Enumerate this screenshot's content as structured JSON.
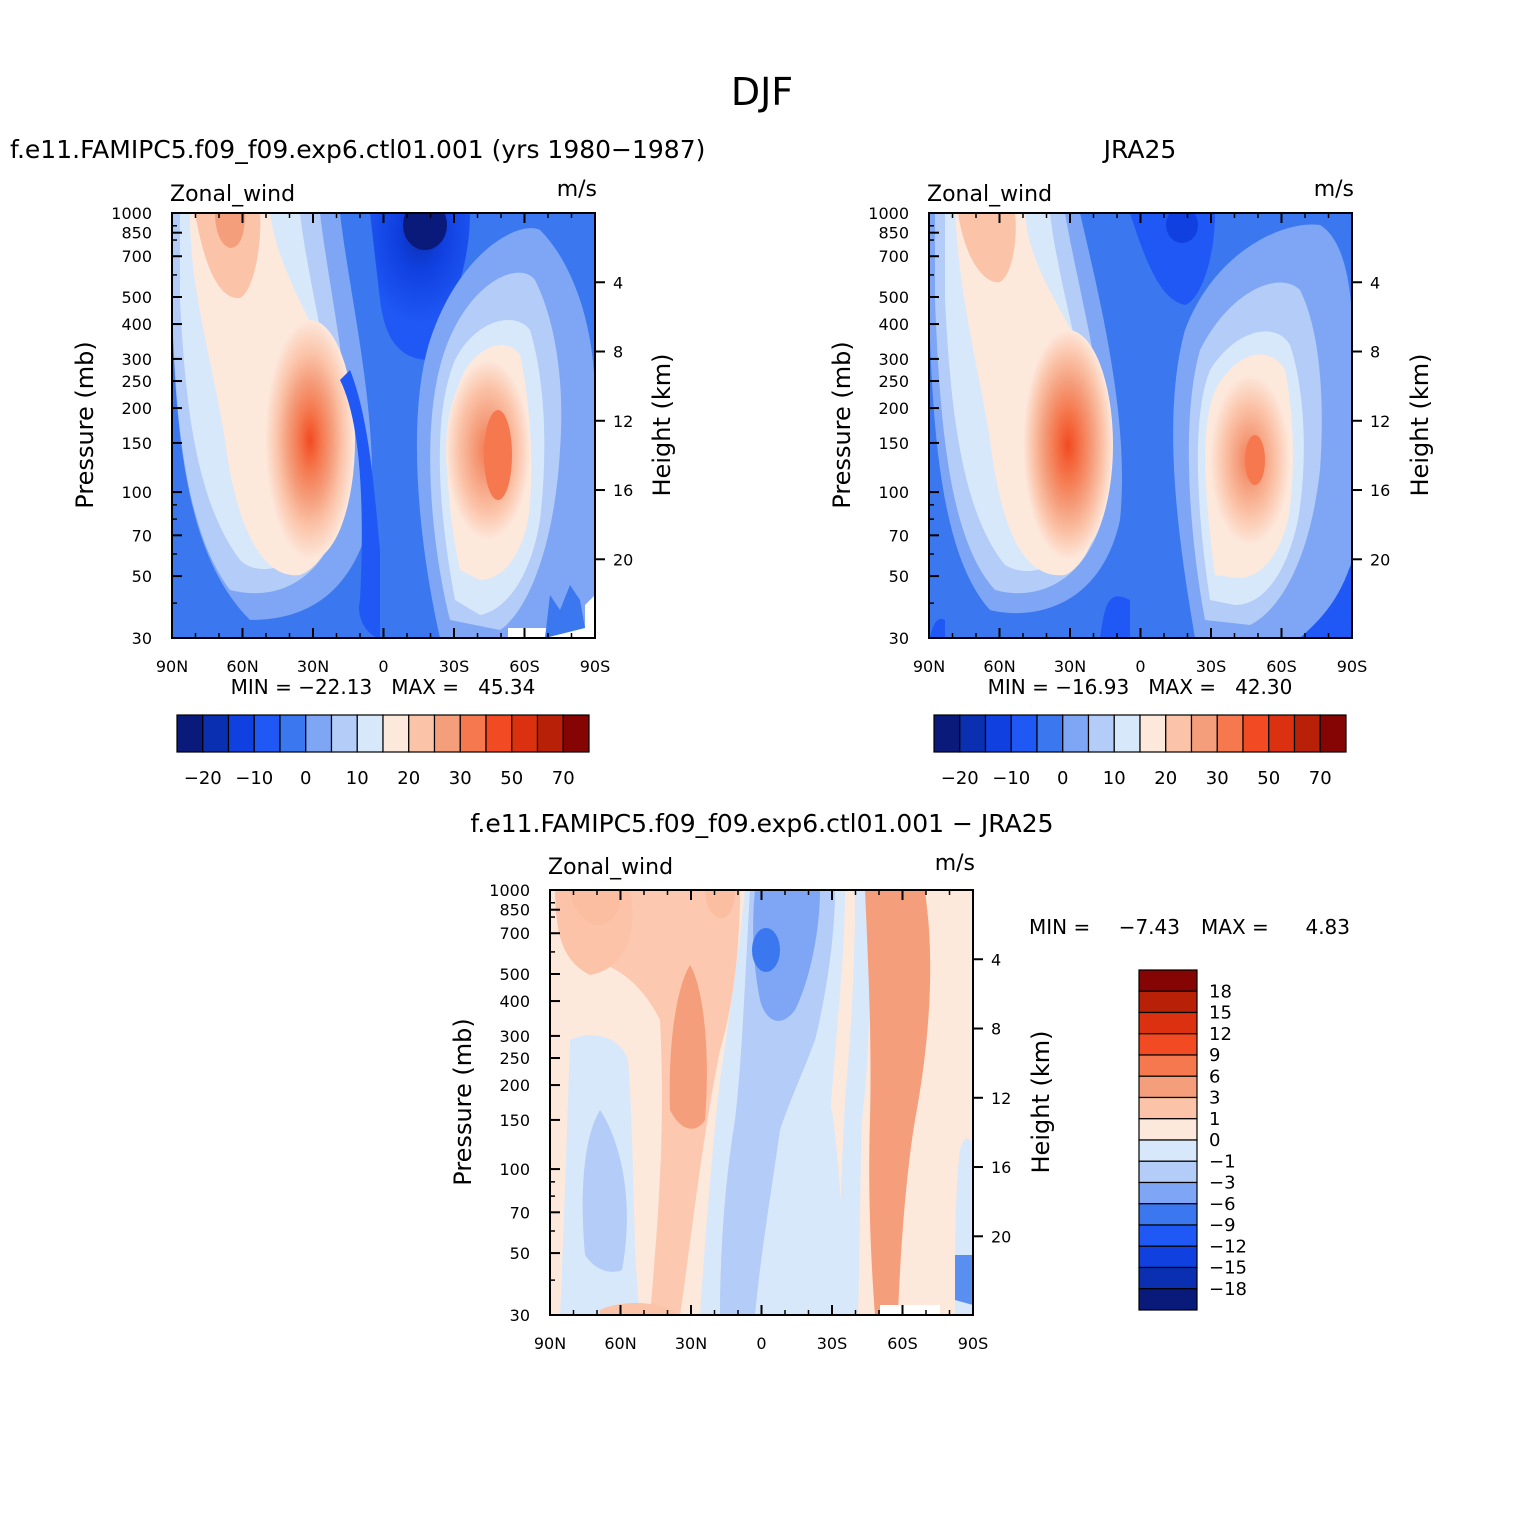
{
  "main_title": "DJF",
  "palette": [
    "#0a1a7a",
    "#0a2fb0",
    "#1040e0",
    "#1f58f5",
    "#3b78f0",
    "#7ea6f5",
    "#b3ccf8",
    "#d8e8fb",
    "#fde8dc",
    "#fbc3a8",
    "#f59e7c",
    "#f5784e",
    "#f24a22",
    "#dc3110",
    "#b82008",
    "#850505"
  ],
  "charts": [
    {
      "header": "f.e11.FAMIPC5.f09_f09.exp6.ctl01.001 (yrs 1980−1987)",
      "left_label": "Zonal_wind",
      "unit": "m/s",
      "ylabel": "Pressure (mb)",
      "y2label": "Height (km)",
      "yticks": [
        "30",
        "50",
        "70",
        "100",
        "150",
        "200",
        "250",
        "300",
        "400",
        "500",
        "700",
        "850",
        "1000"
      ],
      "y2ticks": [
        "20",
        "16",
        "12",
        "8",
        "4"
      ],
      "xticks": [
        "90N",
        "60N",
        "30N",
        "0",
        "30S",
        "60S",
        "90S"
      ],
      "minmax": "MIN = −22.13   MAX =   45.34",
      "colorbar_labels": [
        "−20",
        "−10",
        "0",
        "10",
        "20",
        "30",
        "50",
        "70"
      ]
    },
    {
      "header": "JRA25",
      "left_label": "Zonal_wind",
      "unit": "m/s",
      "ylabel": "Pressure (mb)",
      "y2label": "Height (km)",
      "yticks": [
        "30",
        "50",
        "70",
        "100",
        "150",
        "200",
        "250",
        "300",
        "400",
        "500",
        "700",
        "850",
        "1000"
      ],
      "y2ticks": [
        "20",
        "16",
        "12",
        "8",
        "4"
      ],
      "xticks": [
        "90N",
        "60N",
        "30N",
        "0",
        "30S",
        "60S",
        "90S"
      ],
      "minmax": "MIN = −16.93   MAX =   42.30",
      "colorbar_labels": [
        "−20",
        "−10",
        "0",
        "10",
        "20",
        "30",
        "50",
        "70"
      ]
    },
    {
      "header": "f.e11.FAMIPC5.f09_f09.exp6.ctl01.001 − JRA25",
      "left_label": "Zonal_wind",
      "unit": "m/s",
      "ylabel": "Pressure (mb)",
      "y2label": "Height (km)",
      "yticks": [
        "30",
        "50",
        "70",
        "100",
        "150",
        "200",
        "250",
        "300",
        "400",
        "500",
        "700",
        "850",
        "1000"
      ],
      "y2ticks": [
        "20",
        "16",
        "12",
        "8",
        "4"
      ],
      "xticks": [
        "90N",
        "60N",
        "30N",
        "0",
        "30S",
        "60S",
        "90S"
      ],
      "minmax_min_label": "MIN =",
      "minmax_min": "−7.43",
      "minmax_max_label": "MAX =",
      "minmax_max": "4.83",
      "colorbar_labels": [
        "18",
        "15",
        "12",
        "9",
        "6",
        "3",
        "1",
        "0",
        "−1",
        "−3",
        "−6",
        "−9",
        "−12",
        "−15",
        "−18"
      ]
    }
  ],
  "chart_data": [
    {
      "type": "heatmap",
      "title": "f.e11.FAMIPC5.f09_f09.exp6.ctl01.001 (yrs 1980−1987)",
      "variable": "Zonal_wind",
      "units": "m/s",
      "xlabel": "",
      "ylabel": "Pressure (mb)",
      "y2label": "Height (km)",
      "x_range": [
        "90N",
        "90S"
      ],
      "y_range_mb": [
        1000,
        30
      ],
      "y_scale": "log",
      "min": -22.13,
      "max": 45.34,
      "features": [
        {
          "name": "NH subtropical jet",
          "lat": -30,
          "p_mb": 200,
          "value": 45
        },
        {
          "name": "SH jet",
          "lat": 50,
          "p_mb": 230,
          "value": 35
        },
        {
          "name": "equatorial easterly min",
          "lat": 18,
          "p_mb": 30,
          "value": -22
        }
      ]
    },
    {
      "type": "heatmap",
      "title": "JRA25",
      "variable": "Zonal_wind",
      "units": "m/s",
      "ylabel": "Pressure (mb)",
      "y2label": "Height (km)",
      "x_range": [
        "90N",
        "90S"
      ],
      "y_range_mb": [
        1000,
        30
      ],
      "y_scale": "log",
      "min": -16.93,
      "max": 42.3,
      "features": [
        {
          "name": "NH subtropical jet",
          "lat": -30,
          "p_mb": 200,
          "value": 42
        },
        {
          "name": "SH jet",
          "lat": 47,
          "p_mb": 250,
          "value": 30
        },
        {
          "name": "equatorial easterly min",
          "lat": 18,
          "p_mb": 30,
          "value": -17
        }
      ]
    },
    {
      "type": "heatmap",
      "title": "f.e11.FAMIPC5.f09_f09.exp6.ctl01.001 − JRA25",
      "variable": "Zonal_wind",
      "units": "m/s",
      "ylabel": "Pressure (mb)",
      "y2label": "Height (km)",
      "x_range": [
        "90N",
        "90S"
      ],
      "y_range_mb": [
        1000,
        30
      ],
      "y_scale": "log",
      "min": -7.43,
      "max": 4.83,
      "colorbar_levels": [
        -18,
        -15,
        -12,
        -9,
        -6,
        -3,
        -1,
        0,
        1,
        3,
        6,
        9,
        12,
        15,
        18
      ]
    }
  ]
}
